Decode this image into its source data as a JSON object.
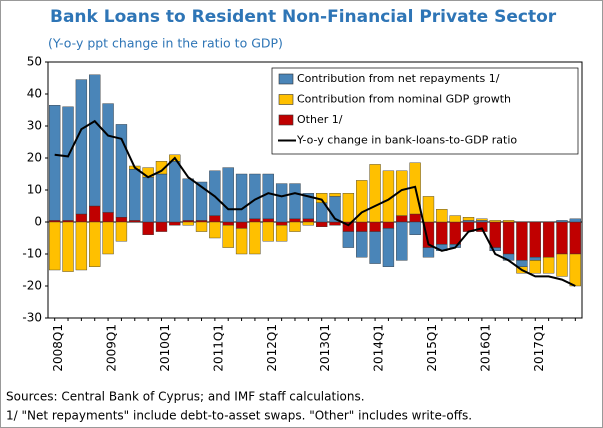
{
  "chart_data": {
    "type": "bar",
    "stacked": true,
    "title": "Bank Loans to Resident Non-Financial Private Sector",
    "subtitle": "(Y-o-y ppt change in the ratio to GDP)",
    "categories": [
      "2008Q1",
      null,
      null,
      null,
      "2009Q1",
      null,
      null,
      null,
      "2010Q1",
      null,
      null,
      null,
      "2011Q1",
      null,
      null,
      null,
      "2012Q1",
      null,
      null,
      null,
      "2013Q1",
      null,
      null,
      null,
      "2014Q1",
      null,
      null,
      null,
      "2015Q1",
      null,
      null,
      null,
      "2016Q1",
      null,
      null,
      null,
      "2017Q1",
      null,
      null,
      null
    ],
    "series": [
      {
        "name": "Contribution from net repayments 1/",
        "color": "#4a85b8",
        "type": "bar",
        "values": [
          36,
          35.5,
          42,
          41,
          34,
          29,
          16,
          14,
          15,
          19,
          13,
          12,
          14,
          17,
          15,
          14,
          14,
          12,
          11,
          8,
          6,
          8,
          -5,
          -8,
          -10,
          -12,
          -12,
          -4,
          -3,
          -2,
          -1,
          0.5,
          0.5,
          -1,
          -2,
          -2,
          -1,
          0,
          0.5,
          1
        ]
      },
      {
        "name": "Contribution from nominal GDP growth",
        "color": "#ffc000",
        "type": "bar",
        "values": [
          -15,
          -15.5,
          -15,
          -14,
          -10,
          -6,
          1,
          3,
          4,
          2,
          -1,
          -3,
          -5,
          -7,
          -8,
          -10,
          -6,
          -5,
          -3,
          -1,
          3,
          1,
          9,
          13,
          18,
          16,
          14,
          16,
          8,
          4,
          2,
          1,
          0.5,
          0.5,
          0.5,
          -2,
          -4,
          -5,
          -7,
          -10
        ]
      },
      {
        "name": "Other 1/",
        "color": "#c00000",
        "type": "bar",
        "values": [
          0.5,
          0.5,
          2.5,
          5,
          3,
          1.5,
          0.5,
          -4,
          -3,
          -1,
          0.5,
          0.5,
          2,
          -1,
          -2,
          1,
          1,
          -1,
          1,
          1,
          -1.5,
          -1,
          -3,
          -3,
          -3,
          -2,
          2,
          2.5,
          -8,
          -7,
          -7,
          -3,
          -3,
          -8,
          -10,
          -12,
          -11,
          -11,
          -10,
          -10
        ]
      },
      {
        "name": "Y-o-y change in bank-loans-to-GDP ratio",
        "color": "#000000",
        "type": "line",
        "values": [
          21,
          20.5,
          29,
          31.5,
          27,
          26,
          17,
          14,
          16,
          20,
          14,
          11,
          8,
          4,
          4,
          7,
          9,
          8,
          9,
          8,
          7,
          1,
          -1,
          3,
          5,
          7,
          10,
          11,
          -7,
          -9,
          -8,
          -3,
          -2,
          -10,
          -12,
          -15,
          -17,
          -17,
          -18,
          -20
        ]
      }
    ],
    "ylim": [
      -30,
      50
    ],
    "yticks": [
      -30,
      -20,
      -10,
      0,
      10,
      20,
      30,
      40,
      50
    ],
    "legend": "upper right",
    "notes": [
      "Sources: Central Bank of Cyprus; and IMF staff calculations.",
      "1/ \"Net repayments\" include debt-to-asset swaps. \"Other\" includes write-offs."
    ]
  }
}
